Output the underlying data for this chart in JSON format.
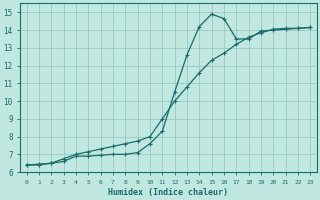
{
  "xlabel": "Humidex (Indice chaleur)",
  "bg_color": "#c0e8e0",
  "grid_color": "#98c8c0",
  "line_color": "#1a6b6b",
  "xlim": [
    -0.5,
    23.5
  ],
  "ylim": [
    6,
    15.5
  ],
  "xticks": [
    0,
    1,
    2,
    3,
    4,
    5,
    6,
    7,
    8,
    9,
    10,
    11,
    12,
    13,
    14,
    15,
    16,
    17,
    18,
    19,
    20,
    21,
    22,
    23
  ],
  "yticks": [
    6,
    7,
    8,
    9,
    10,
    11,
    12,
    13,
    14,
    15
  ],
  "curve1_x": [
    0,
    1,
    2,
    3,
    4,
    5,
    6,
    7,
    8,
    9,
    10,
    11,
    12,
    13,
    14,
    15,
    16,
    17,
    18,
    19,
    20,
    21,
    22,
    23
  ],
  "curve1_y": [
    6.4,
    6.4,
    6.5,
    6.6,
    6.9,
    6.9,
    6.95,
    7.0,
    7.0,
    7.1,
    7.6,
    8.3,
    10.5,
    12.6,
    14.2,
    14.9,
    14.65,
    13.5,
    13.5,
    13.95,
    14.0,
    14.05,
    14.1,
    14.15
  ],
  "curve2_x": [
    0,
    1,
    2,
    3,
    4,
    5,
    6,
    7,
    8,
    9,
    10,
    11,
    12,
    13,
    14,
    15,
    16,
    17,
    18,
    19,
    20,
    21,
    22,
    23
  ],
  "curve2_y": [
    6.4,
    6.45,
    6.5,
    6.75,
    7.0,
    7.15,
    7.3,
    7.45,
    7.6,
    7.75,
    8.0,
    9.0,
    10.0,
    10.8,
    11.6,
    12.3,
    12.7,
    13.2,
    13.6,
    13.85,
    14.05,
    14.1,
    14.1,
    14.15
  ]
}
